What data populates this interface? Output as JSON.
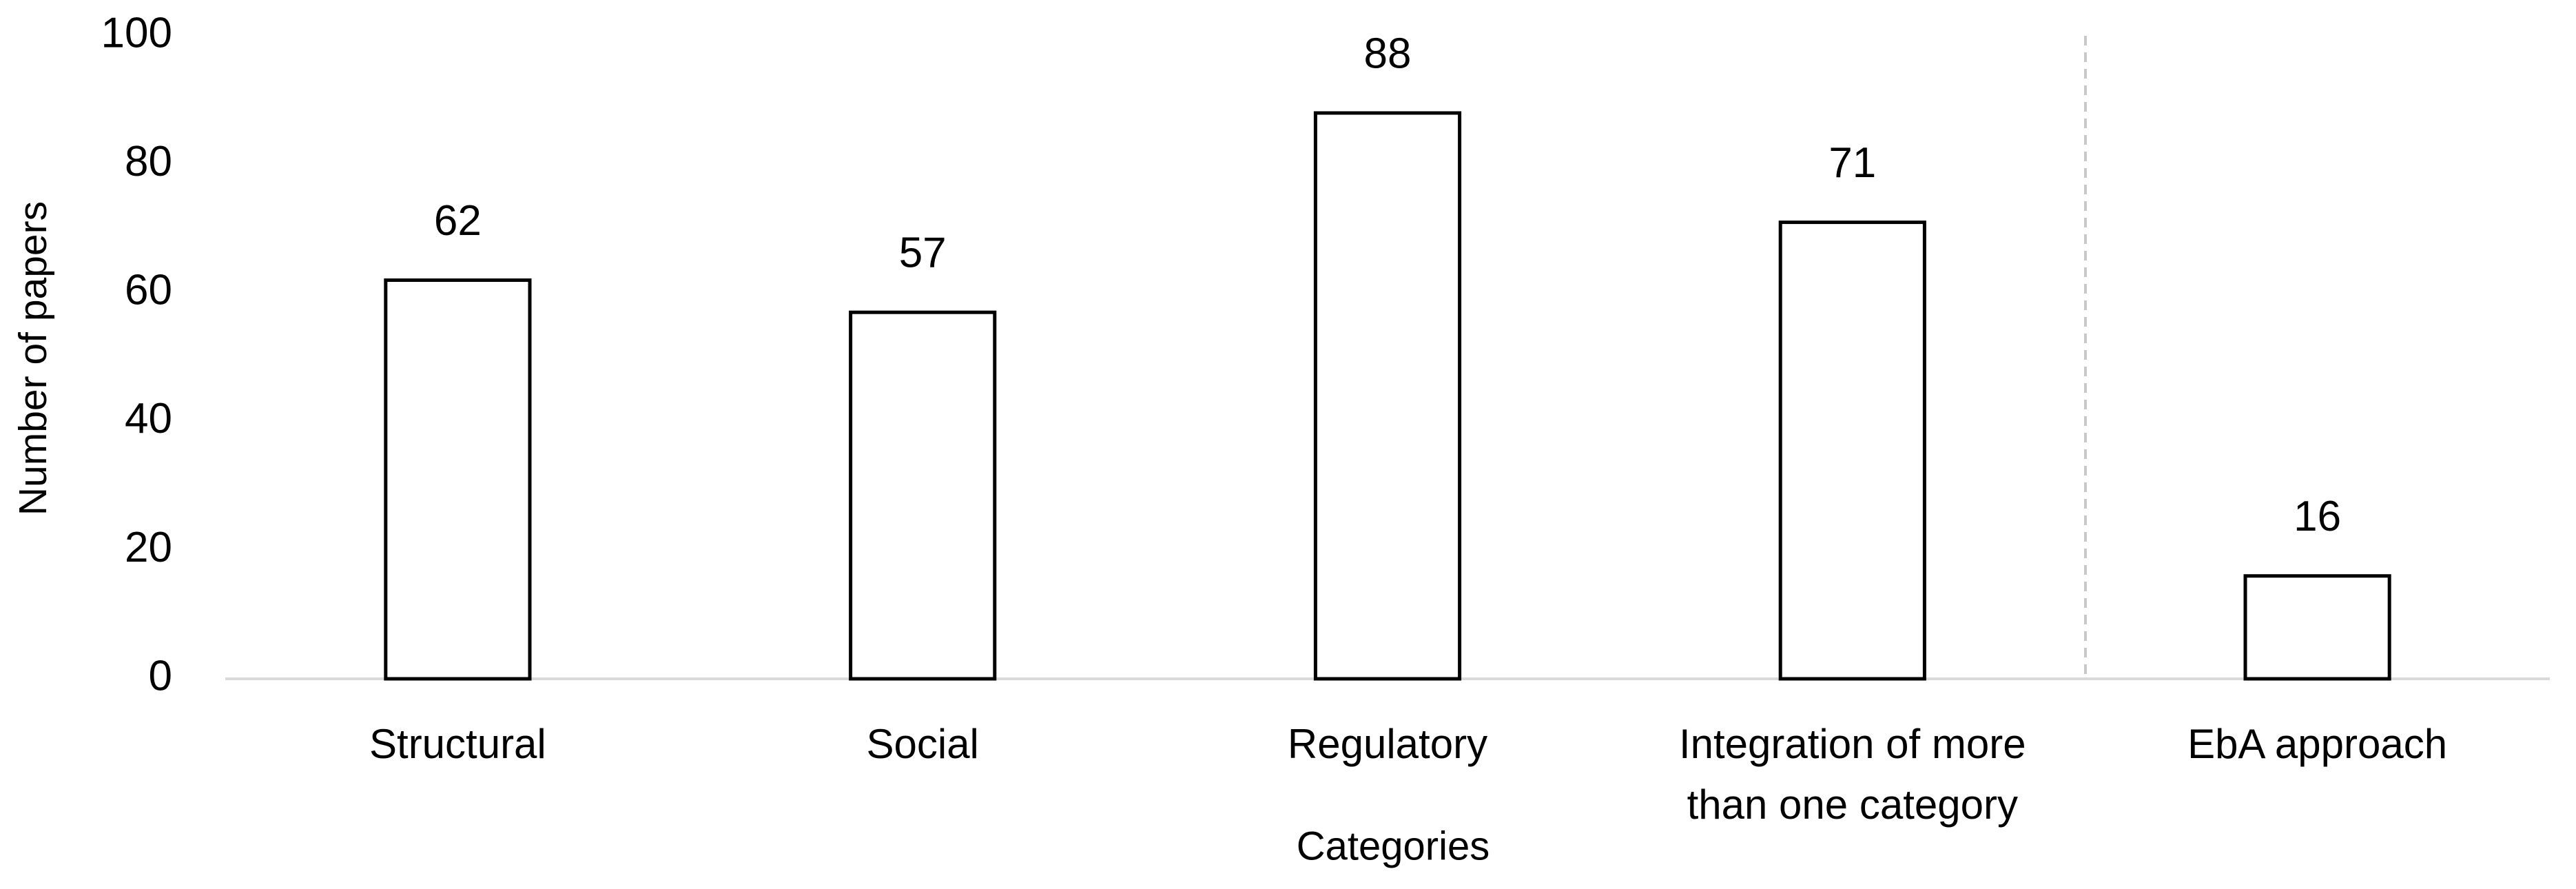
{
  "chart_data": {
    "type": "bar",
    "categories": [
      "Structural",
      "Social",
      "Regulatory",
      "Integration of more than one category",
      "EbA approach"
    ],
    "values": [
      62,
      57,
      88,
      71,
      16
    ],
    "color": "#ffffff",
    "edge_color": "#000000",
    "x_label": "Categories",
    "y_label": "Number of papers",
    "ylim": [
      0,
      100
    ],
    "yticks": [
      0,
      20,
      40,
      60,
      80,
      100
    ],
    "grid": false
  }
}
